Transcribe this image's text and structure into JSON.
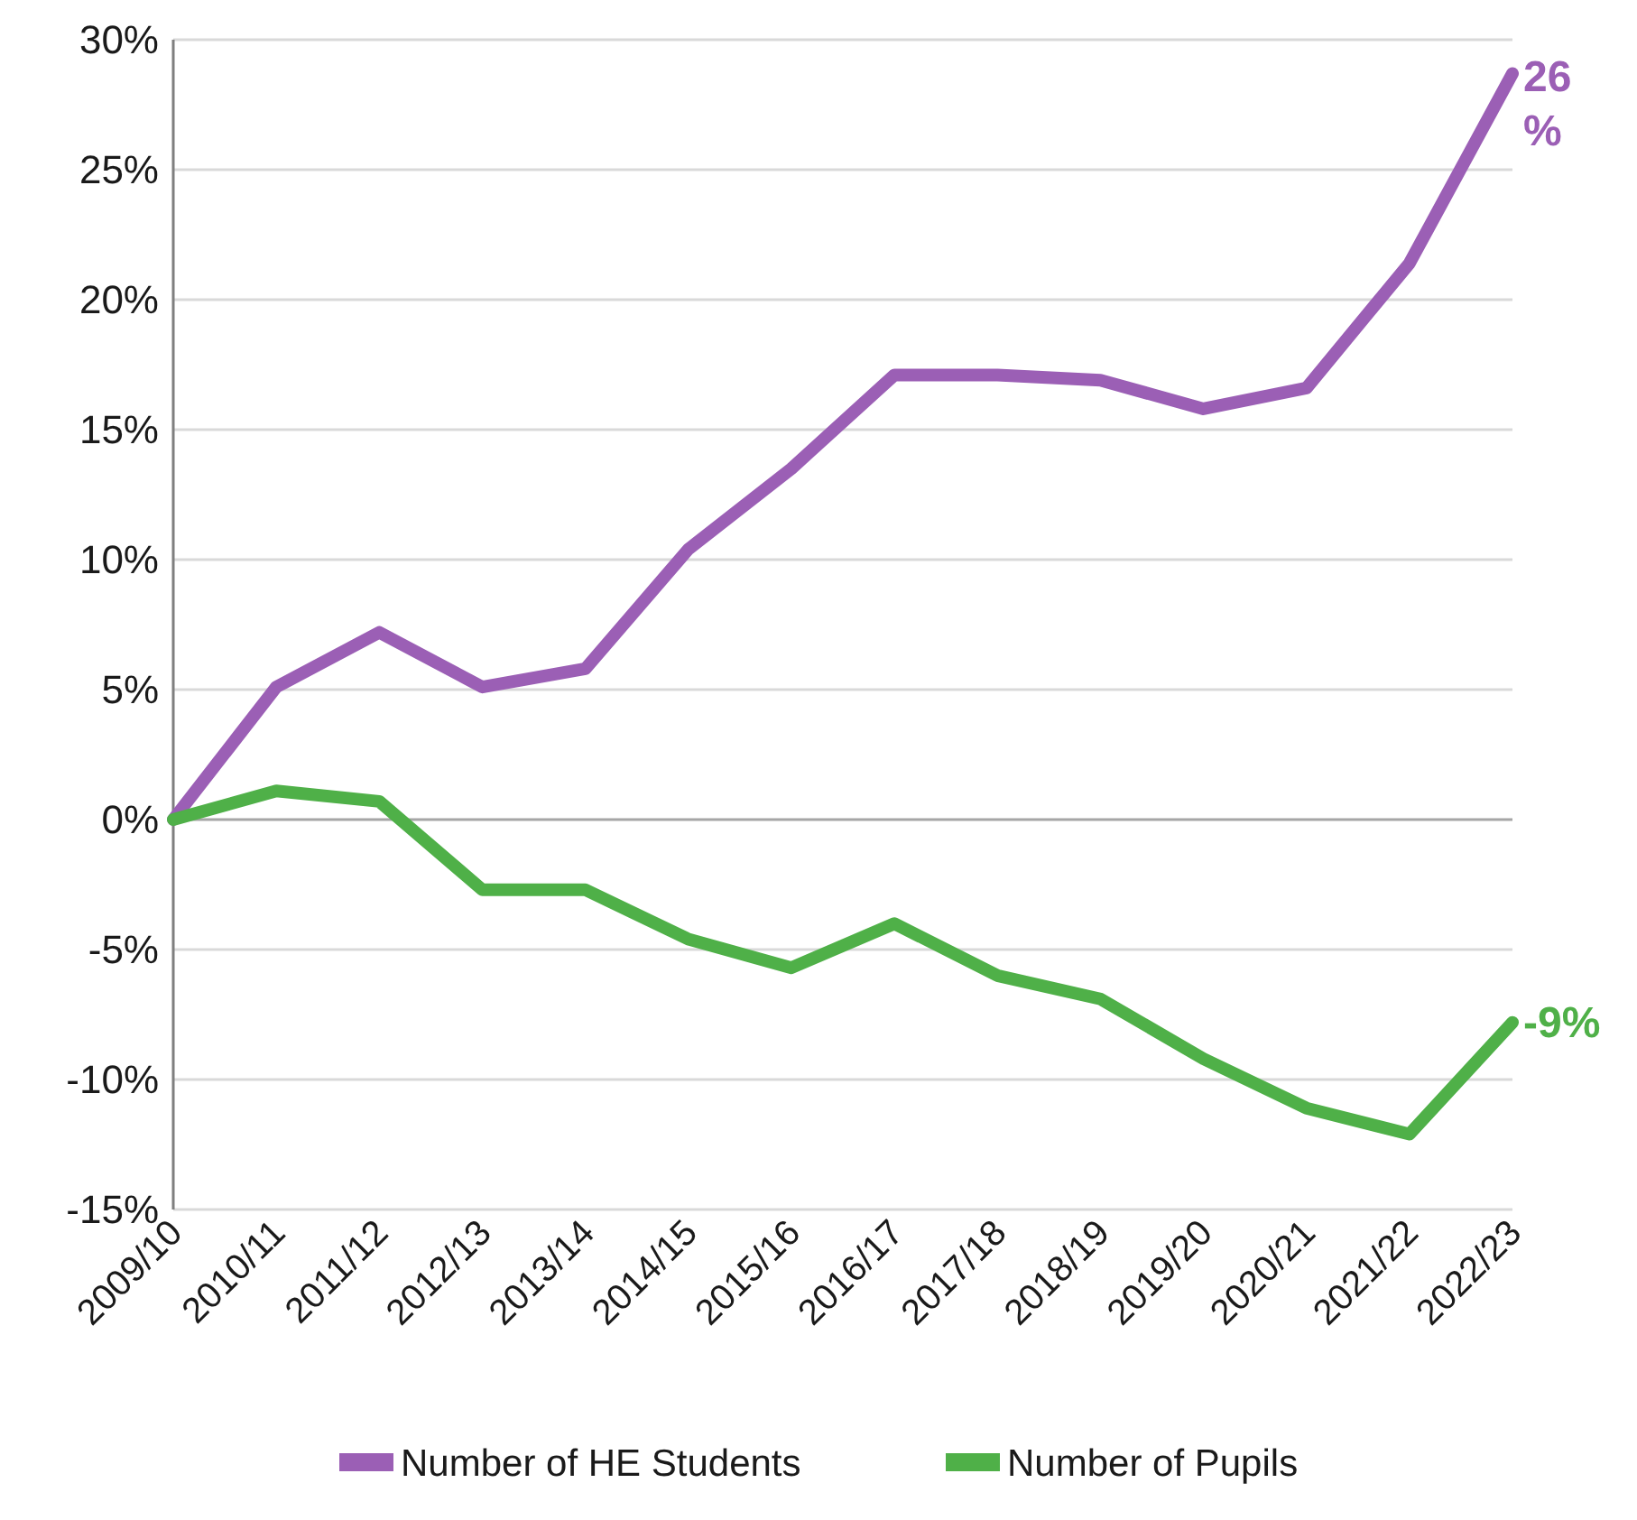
{
  "chart_data": {
    "type": "line",
    "categories": [
      "2009/10",
      "2010/11",
      "2011/12",
      "2012/13",
      "2013/14",
      "2014/15",
      "2015/16",
      "2016/17",
      "2017/18",
      "2018/19",
      "2019/20",
      "2020/21",
      "2021/22",
      "2022/23"
    ],
    "series": [
      {
        "name": "Number of HE Students",
        "color": "#9b5fb5",
        "values": [
          0,
          5.1,
          7.2,
          5.1,
          5.8,
          10.4,
          13.5,
          17.1,
          17.1,
          16.9,
          15.8,
          16.6,
          21.4,
          28.7
        ]
      },
      {
        "name": "Number of Pupils",
        "color": "#4fb048",
        "values": [
          0,
          1.1,
          0.7,
          -2.7,
          -2.7,
          -4.6,
          -5.7,
          -4.0,
          -6.0,
          -6.9,
          -9.2,
          -11.1,
          -12.1,
          -7.8
        ]
      }
    ],
    "annotations": [
      "26%",
      "-9%"
    ],
    "ylim": [
      -15,
      30
    ],
    "yticks": [
      {
        "value": -15,
        "label": "-15%"
      },
      {
        "value": -10,
        "label": "-10%"
      },
      {
        "value": -5,
        "label": "-5%"
      },
      {
        "value": 0,
        "label": "0%"
      },
      {
        "value": 5,
        "label": "5%"
      },
      {
        "value": 10,
        "label": "10%"
      },
      {
        "value": 15,
        "label": "15%"
      },
      {
        "value": 20,
        "label": "20%"
      },
      {
        "value": 25,
        "label": "25%"
      },
      {
        "value": 30,
        "label": "30%"
      }
    ],
    "grid": "y",
    "legend": "bottom",
    "marker": "none",
    "line_style": "solid"
  }
}
